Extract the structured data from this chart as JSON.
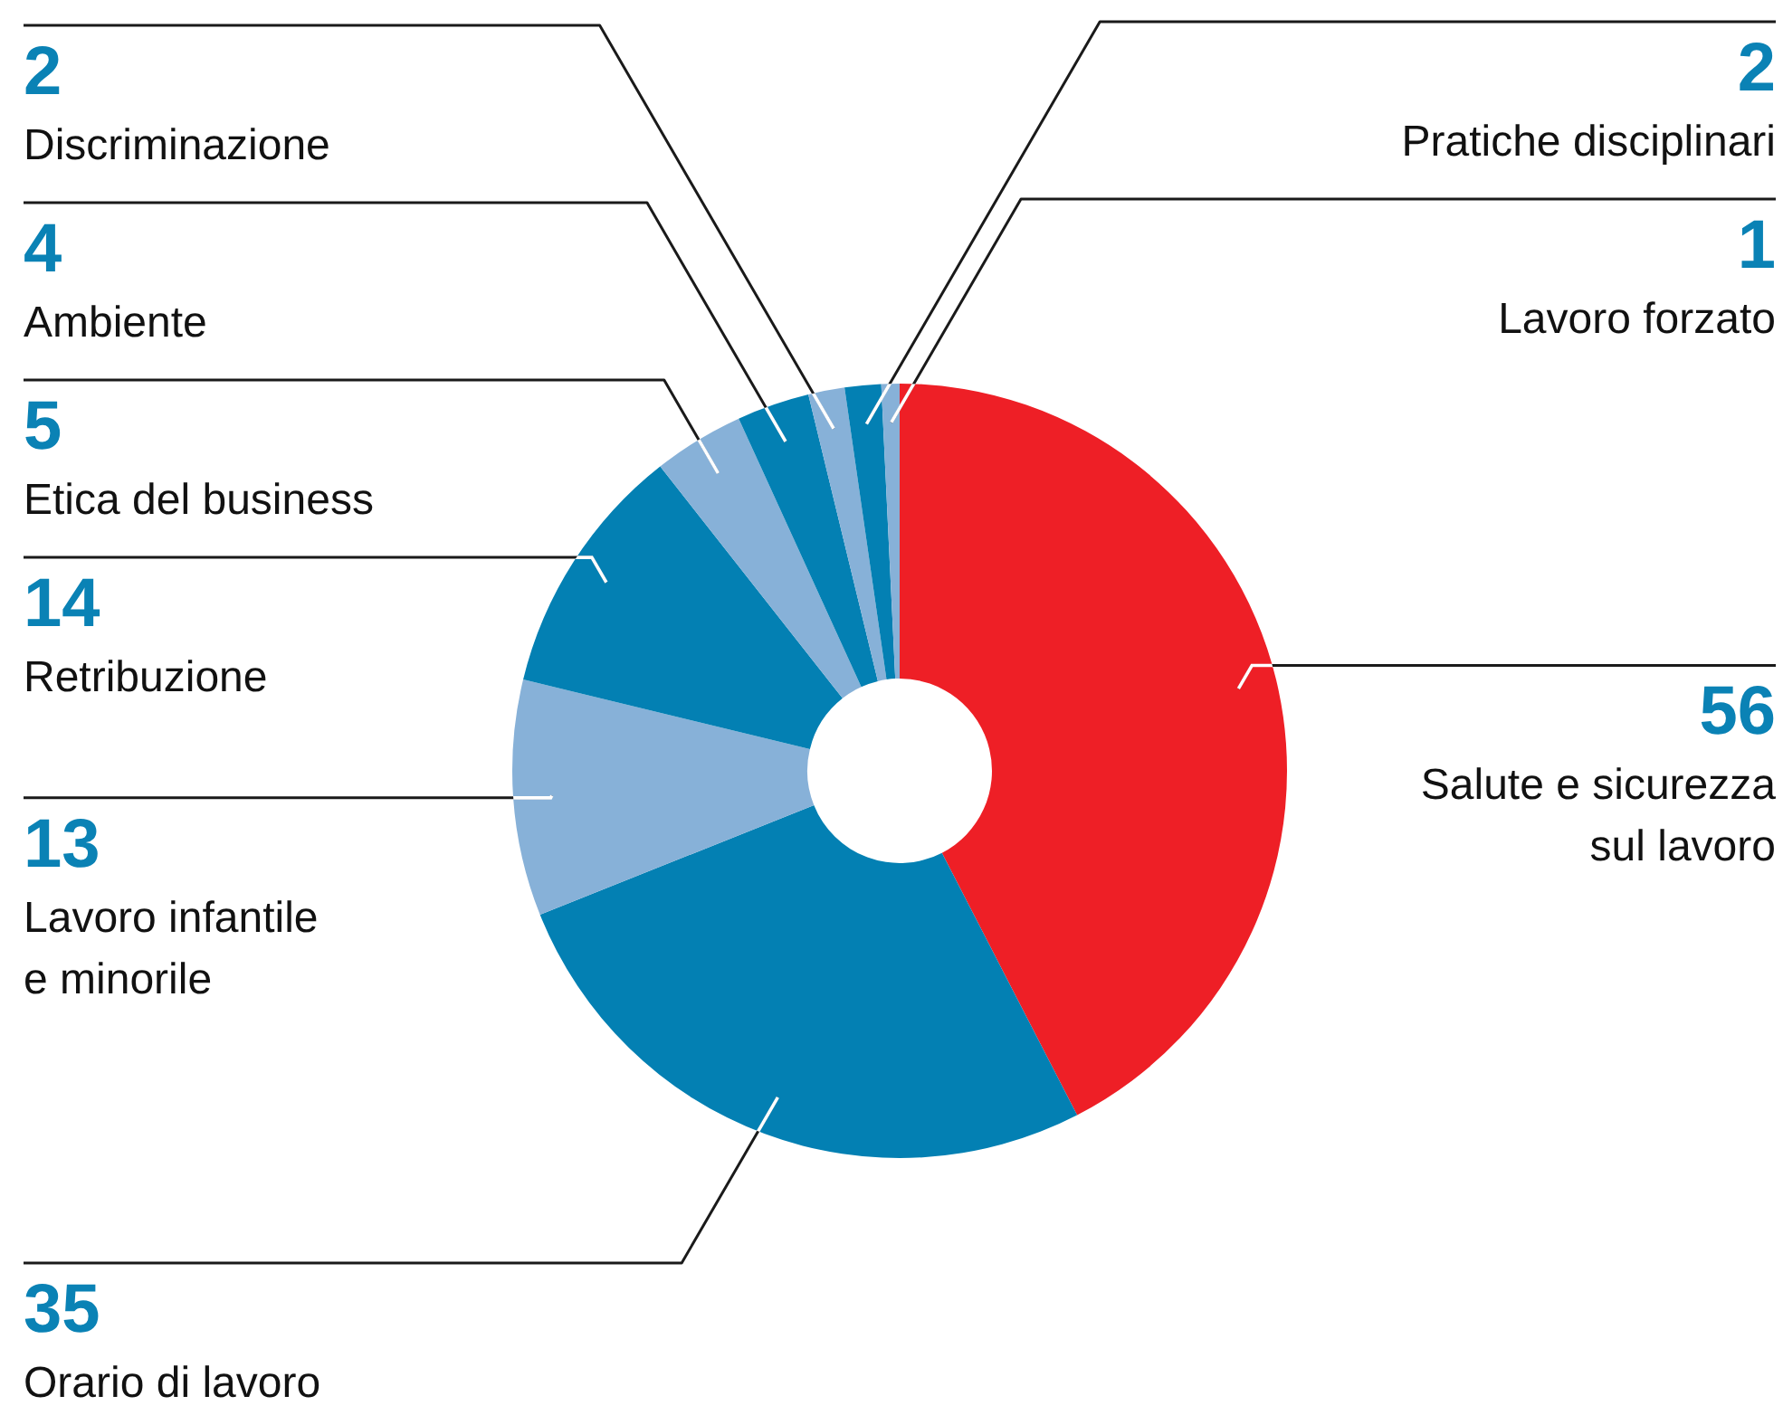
{
  "chart_data": {
    "type": "donut",
    "categories": [
      "Salute e sicurezza\nsul lavoro",
      "Orario di lavoro",
      "Lavoro infantile\ne minorile",
      "Retribuzione",
      "Etica del business",
      "Ambiente",
      "Discriminazione",
      "Pratiche disciplinari",
      "Lavoro forzato"
    ],
    "values": [
      56,
      35,
      13,
      14,
      5,
      4,
      2,
      2,
      1
    ],
    "colors": [
      "#ee1f26",
      "#0380b3",
      "#87b1d8",
      "#0380b3",
      "#87b1d8",
      "#0380b3",
      "#87b1d8",
      "#0380b3",
      "#87b1d8"
    ],
    "data_labels": true
  }
}
